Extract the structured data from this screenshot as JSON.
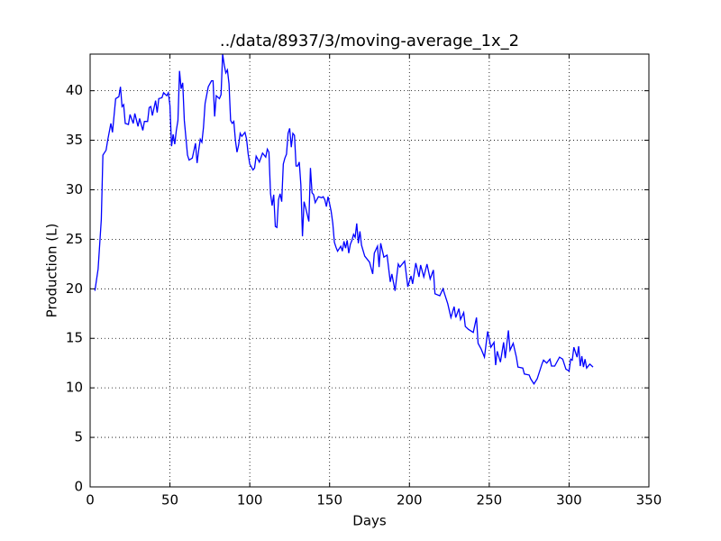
{
  "chart_data": {
    "type": "line",
    "title": "../data/8937/3/moving-average_1x_2",
    "xlabel": "Days",
    "ylabel": "Production (L)",
    "color": "#0000ff",
    "grid": true,
    "xlim": [
      0,
      350
    ],
    "xticks": [
      0,
      50,
      100,
      150,
      200,
      250,
      300,
      350
    ],
    "ylim": [
      0,
      43.7
    ],
    "yticks": [
      0,
      5,
      10,
      15,
      20,
      25,
      30,
      35,
      40
    ],
    "x": [
      3,
      5,
      7,
      8,
      10,
      11,
      13,
      14,
      16,
      18,
      19,
      20,
      21,
      22,
      24,
      25,
      27,
      28,
      30,
      31,
      33,
      34,
      36,
      37,
      38,
      39,
      41,
      42,
      43,
      45,
      46,
      48,
      49,
      50,
      51,
      52,
      53,
      54,
      55,
      56,
      57,
      58,
      59,
      61,
      62,
      64,
      66,
      67,
      68,
      69,
      70,
      71,
      72,
      74,
      76,
      77,
      78,
      79,
      81,
      82,
      83,
      84,
      85,
      86,
      87,
      88,
      89,
      90,
      91,
      92,
      93,
      94,
      95,
      97,
      98,
      99,
      100,
      102,
      103,
      104,
      106,
      108,
      110,
      111,
      112,
      113,
      114,
      115,
      116,
      117,
      118,
      119,
      120,
      121,
      122,
      123,
      124,
      125,
      126,
      127,
      128,
      129,
      130,
      131,
      132,
      133,
      134,
      135,
      137,
      138,
      139,
      140,
      141,
      142,
      143,
      145,
      146,
      147,
      148,
      149,
      150,
      151,
      152,
      153,
      154,
      155,
      157,
      158,
      159,
      160,
      161,
      162,
      163,
      164,
      165,
      166,
      167,
      168,
      169,
      170,
      172,
      175,
      177,
      178,
      180,
      181,
      182,
      184,
      186,
      188,
      189,
      191,
      193,
      194,
      197,
      199,
      201,
      202,
      204,
      206,
      207,
      209,
      211,
      213,
      215,
      216,
      219,
      221,
      224,
      226,
      228,
      229,
      231,
      232,
      234,
      235,
      237,
      240,
      242,
      243,
      245,
      247,
      249,
      251,
      253,
      254,
      255,
      257,
      259,
      260,
      262,
      263,
      265,
      267,
      268,
      271,
      272,
      275,
      276,
      278,
      280,
      283,
      284,
      286,
      288,
      289,
      291,
      294,
      296,
      298,
      300,
      301,
      302,
      303,
      305,
      306,
      307,
      308,
      309,
      310,
      311,
      313,
      315
    ],
    "values": [
      19.8,
      22,
      27,
      33.5,
      34,
      35,
      36.7,
      35.8,
      39.2,
      39.4,
      40.4,
      38.4,
      38.6,
      36.7,
      36.6,
      37.6,
      36.7,
      37.7,
      36.4,
      37.2,
      36.0,
      36.9,
      36.9,
      38.3,
      38.4,
      37.5,
      39,
      37.8,
      39.2,
      39.3,
      39.8,
      39.5,
      39.8,
      38.5,
      34.4,
      35.6,
      34.6,
      36,
      37,
      42,
      40.2,
      40.8,
      37,
      33.5,
      33,
      33.2,
      34.7,
      32.7,
      34,
      35.1,
      34.8,
      36.3,
      38.7,
      40.4,
      41,
      41,
      37.4,
      39.5,
      39.2,
      39.6,
      43.7,
      42.6,
      41.8,
      42.1,
      40.7,
      37,
      36.7,
      36.9,
      35,
      33.8,
      34.5,
      35.7,
      35.4,
      35.8,
      35.1,
      33.6,
      32.6,
      32,
      32.2,
      33.4,
      32.8,
      33.7,
      33.3,
      34.1,
      33.8,
      29.6,
      28.4,
      29.5,
      26.3,
      26.2,
      29,
      29.6,
      28.8,
      32.6,
      33.2,
      33.6,
      35.7,
      36.2,
      34.3,
      35.7,
      35.5,
      32.4,
      32.4,
      32.8,
      30.5,
      25.3,
      28.8,
      28.2,
      26.8,
      32.2,
      29.7,
      29.5,
      28.7,
      29,
      29.3,
      29.2,
      29.3,
      29,
      28.3,
      29.3,
      28.6,
      27.8,
      26.6,
      24.7,
      24.2,
      23.8,
      24.3,
      23.8,
      24.8,
      24.1,
      24.9,
      23.6,
      24.5,
      24.9,
      25.5,
      25.2,
      26.6,
      24.6,
      25.8,
      24.4,
      23.3,
      22.7,
      21.5,
      23.6,
      24.3,
      22.2,
      24.6,
      23.2,
      23.4,
      20.7,
      21.5,
      19.8,
      22.5,
      22.2,
      22.8,
      20.2,
      21.3,
      20.5,
      22.6,
      21.2,
      22.4,
      21.2,
      22.5,
      21,
      21.9,
      19.5,
      19.3,
      20,
      18.5,
      17.1,
      18.2,
      17.1,
      18,
      16.9,
      17.6,
      16.2,
      15.9,
      15.6,
      17.1,
      14.5,
      13.9,
      13.1,
      15.7,
      14.1,
      14.6,
      12.3,
      13.7,
      12.6,
      14.6,
      13,
      15.8,
      13.8,
      14.5,
      13.1,
      12.1,
      12,
      11.4,
      11.3,
      10.9,
      10.4,
      10.9,
      12.4,
      12.8,
      12.5,
      12.9,
      12.2,
      12.2,
      13.1,
      12.9,
      11.9,
      11.7,
      12.9,
      12.8,
      14.1,
      13.1,
      14.2,
      12.2,
      13.2,
      12.1,
      12.9,
      12.0,
      12.4,
      12.1
    ]
  }
}
